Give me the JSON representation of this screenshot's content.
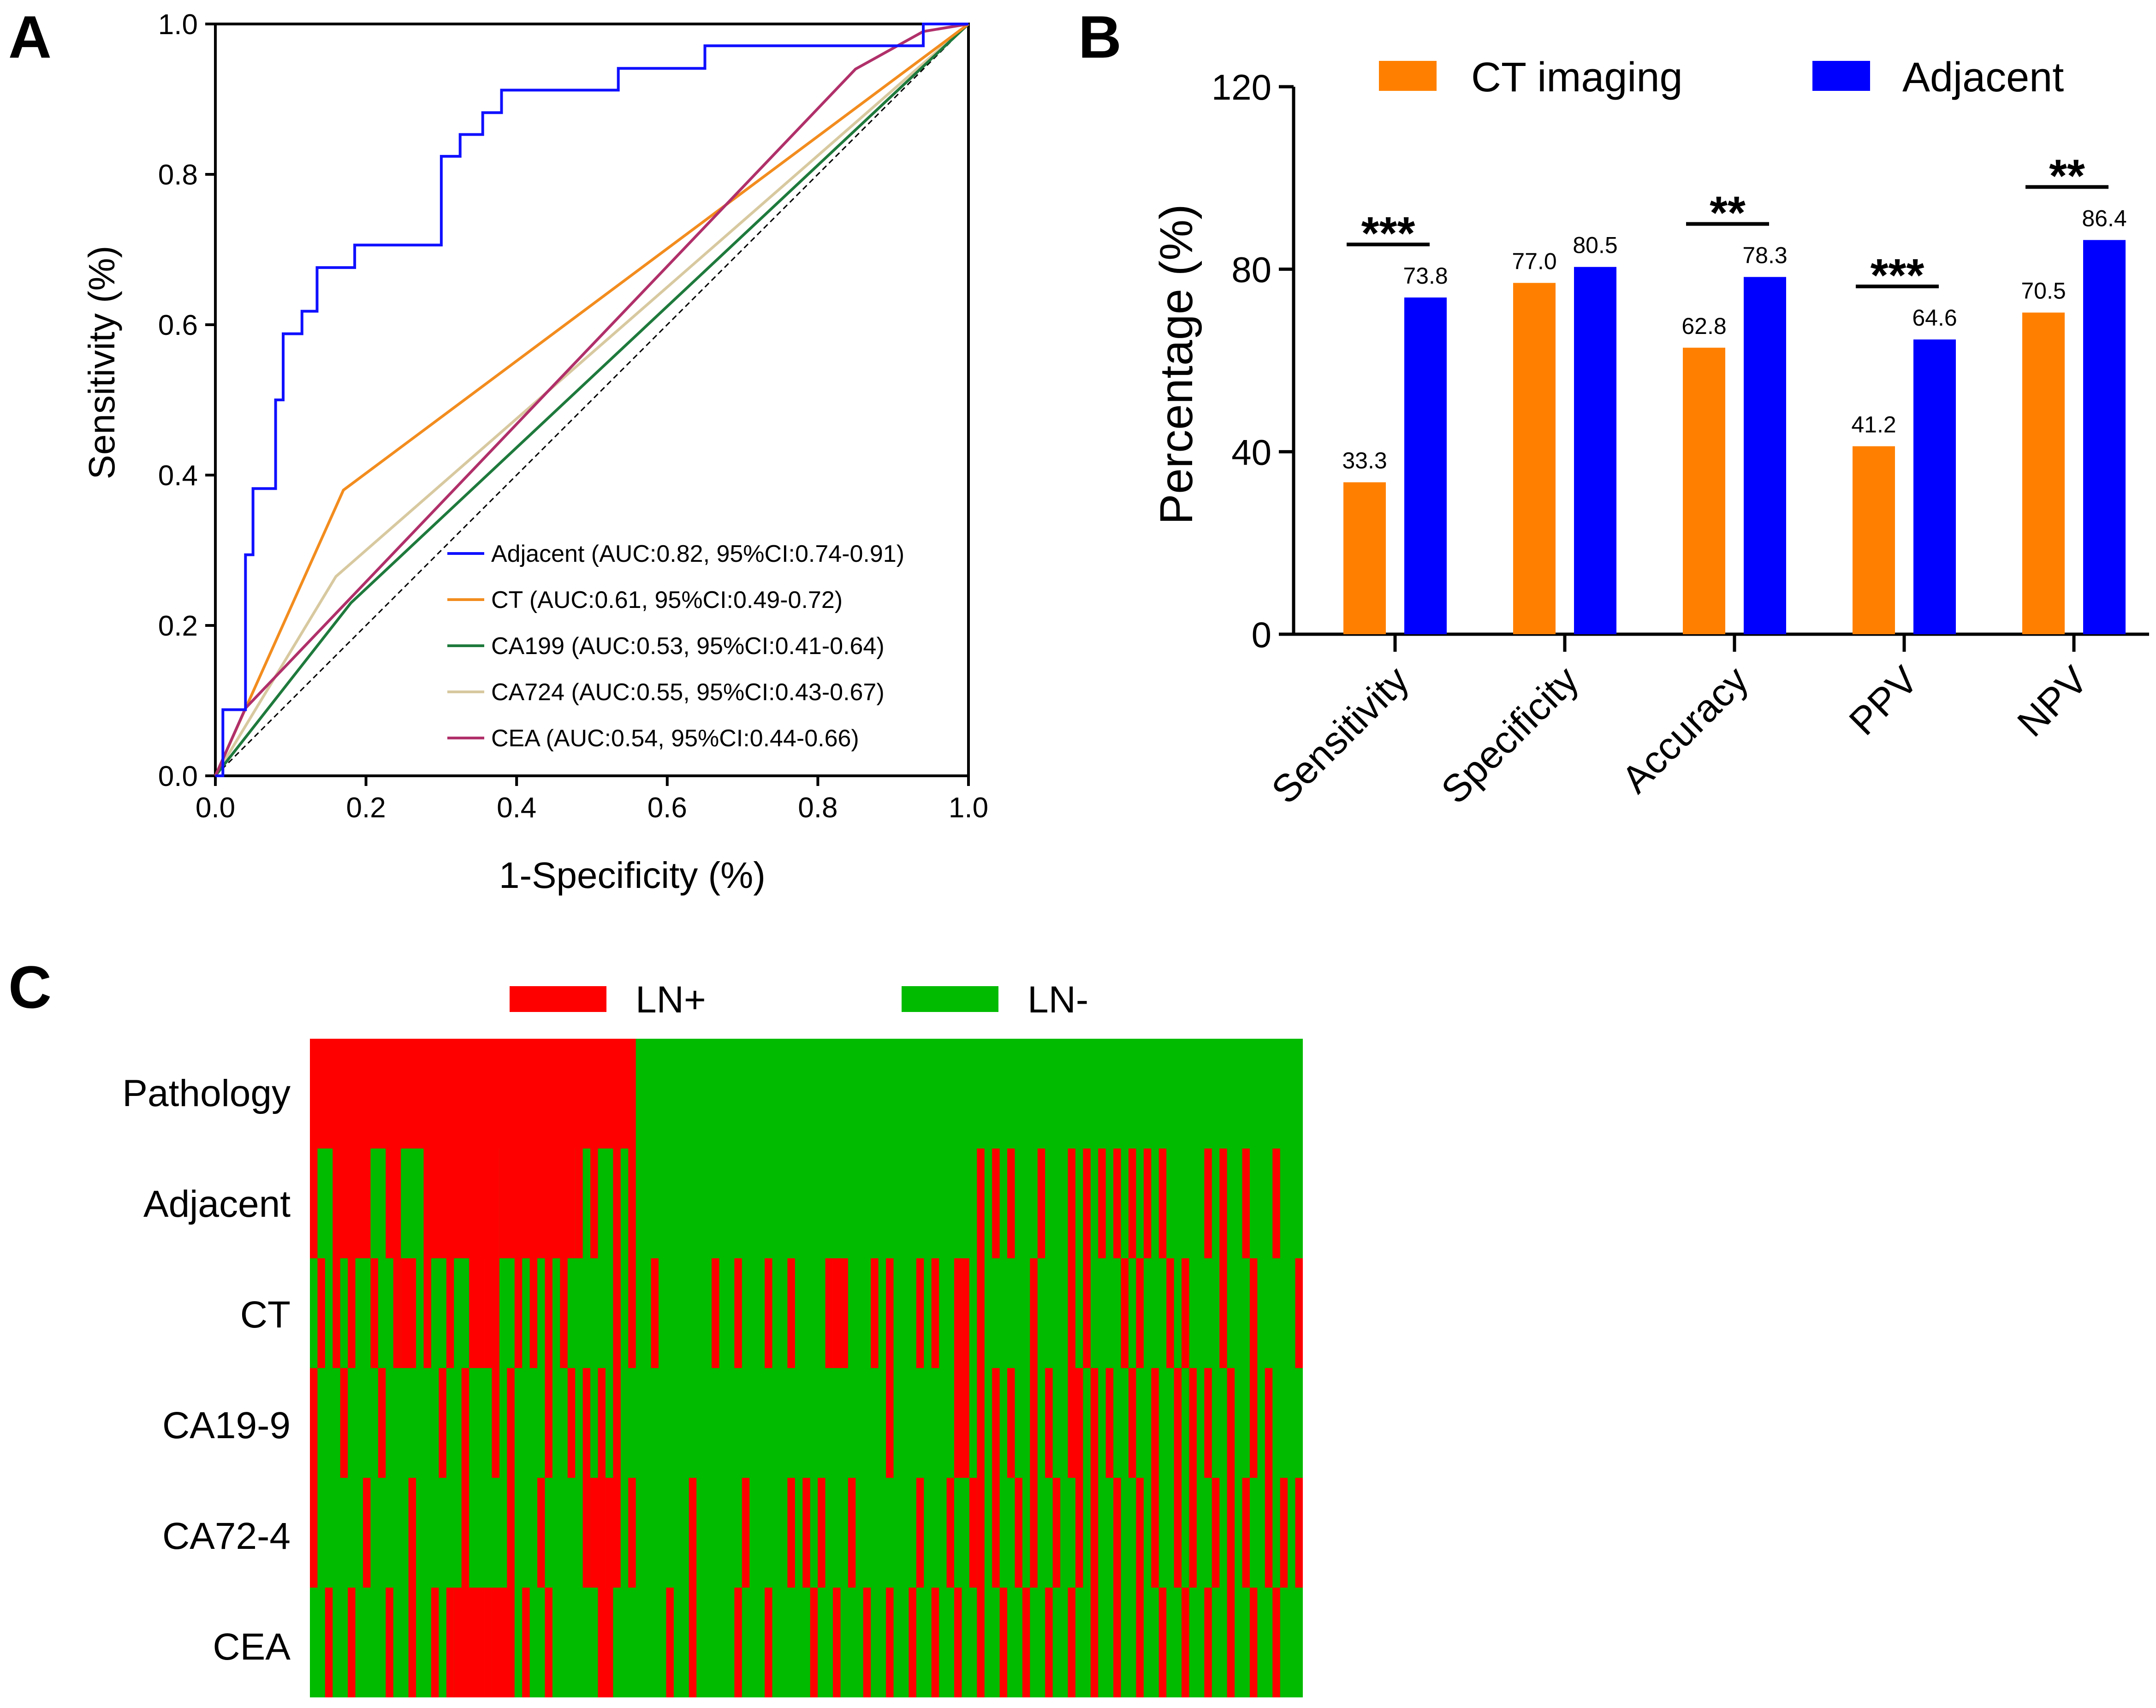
{
  "panels": {
    "a": "A",
    "b": "B",
    "c": "C"
  },
  "roc": {
    "xlabel": "1-Specificity (%)",
    "ylabel": "Sensitivity (%)",
    "xticks": [
      "0.0",
      "0.2",
      "0.4",
      "0.6",
      "0.8",
      "1.0"
    ],
    "yticks": [
      "0.0",
      "0.2",
      "0.4",
      "0.6",
      "0.8",
      "1.0"
    ]
  },
  "bars": {
    "ylabel": "Percentage (%)",
    "yticks": [
      "0",
      "40",
      "80",
      "120"
    ]
  },
  "heatmap": {
    "legend": {
      "pos": "LN+",
      "neg": "LN-"
    },
    "rows": [
      "Pathology",
      "Adjacent",
      "CT",
      "CA19-9",
      "CA72-4",
      "CEA"
    ]
  },
  "colors": {
    "adjacent": "#1010ff",
    "ct": "#f28c1e",
    "ca199": "#1e7a3c",
    "ca724": "#d8c9a0",
    "cea": "#b0306a",
    "bar_ct": "#ff8000",
    "bar_adj": "#0000ff",
    "ln_pos": "#ff0000",
    "ln_neg": "#00bb00"
  },
  "chart_data": [
    {
      "type": "line",
      "title": "",
      "xlabel": "1-Specificity (%)",
      "ylabel": "Sensitivity (%)",
      "xlim": [
        0,
        1
      ],
      "ylim": [
        0,
        1
      ],
      "reference_line": [
        [
          0,
          0
        ],
        [
          1,
          1
        ]
      ],
      "series": [
        {
          "name": "Adjacent",
          "legend": "Adjacent (AUC:0.82, 95%CI:0.74-0.91)",
          "points": [
            [
              0,
              0
            ],
            [
              0.01,
              0
            ],
            [
              0.01,
              0.088
            ],
            [
              0.04,
              0.088
            ],
            [
              0.04,
              0.294
            ],
            [
              0.05,
              0.294
            ],
            [
              0.05,
              0.382
            ],
            [
              0.08,
              0.382
            ],
            [
              0.08,
              0.5
            ],
            [
              0.09,
              0.5
            ],
            [
              0.09,
              0.588
            ],
            [
              0.115,
              0.588
            ],
            [
              0.115,
              0.618
            ],
            [
              0.135,
              0.618
            ],
            [
              0.135,
              0.676
            ],
            [
              0.185,
              0.676
            ],
            [
              0.185,
              0.706
            ],
            [
              0.3,
              0.706
            ],
            [
              0.3,
              0.824
            ],
            [
              0.325,
              0.824
            ],
            [
              0.325,
              0.853
            ],
            [
              0.355,
              0.853
            ],
            [
              0.355,
              0.882
            ],
            [
              0.38,
              0.882
            ],
            [
              0.38,
              0.912
            ],
            [
              0.535,
              0.912
            ],
            [
              0.535,
              0.941
            ],
            [
              0.65,
              0.941
            ],
            [
              0.65,
              0.971
            ],
            [
              0.94,
              0.971
            ],
            [
              0.94,
              1
            ],
            [
              1,
              1
            ]
          ]
        },
        {
          "name": "CT",
          "legend": "CT (AUC:0.61, 95%CI:0.49-0.72)",
          "points": [
            [
              0,
              0
            ],
            [
              0.17,
              0.38
            ],
            [
              1,
              1
            ]
          ]
        },
        {
          "name": "CA199",
          "legend": "CA199 (AUC:0.53, 95%CI:0.41-0.64)",
          "points": [
            [
              0,
              0
            ],
            [
              0.18,
              0.23
            ],
            [
              1,
              1
            ]
          ]
        },
        {
          "name": "CA724",
          "legend": "CA724 (AUC:0.55, 95%CI:0.43-0.67)",
          "points": [
            [
              0,
              0
            ],
            [
              0.16,
              0.265
            ],
            [
              1,
              1
            ]
          ]
        },
        {
          "name": "CEA",
          "legend": "CEA (AUC:0.54, 95%CI:0.44-0.66)",
          "points": [
            [
              0,
              0
            ],
            [
              0.04,
              0.09
            ],
            [
              0.85,
              0.94
            ],
            [
              0.94,
              0.99
            ],
            [
              1,
              1
            ]
          ]
        }
      ]
    },
    {
      "type": "bar",
      "title": "",
      "xlabel": "",
      "ylabel": "Percentage (%)",
      "ylim": [
        0,
        120
      ],
      "categories": [
        "Sensitivity",
        "Specificity",
        "Accuracy",
        "PPV",
        "NPV"
      ],
      "series": [
        {
          "name": "CT imaging",
          "values": [
            33.3,
            77.0,
            62.8,
            41.2,
            70.5
          ],
          "labels": [
            "33.3",
            "77.0",
            "62.8",
            "41.2",
            "70.5"
          ]
        },
        {
          "name": "Adjacent",
          "values": [
            73.8,
            80.5,
            78.3,
            64.6,
            86.4
          ],
          "labels": [
            "73.8",
            "80.5",
            "78.3",
            "64.6",
            "86.4"
          ]
        }
      ],
      "significance": [
        "***",
        "",
        "**",
        "***",
        "**"
      ],
      "legend_position": "top"
    },
    {
      "type": "heatmap",
      "title": "",
      "rows": [
        "Pathology",
        "Adjacent",
        "CT",
        "CA19-9",
        "CA72-4",
        "CEA"
      ],
      "legend": [
        "LN+",
        "LN-"
      ],
      "n_columns": 131,
      "positive_columns": {
        "Pathology": [
          [
            0,
            42
          ]
        ],
        "Adjacent": [
          [
            0,
            0
          ],
          [
            3,
            7
          ],
          [
            10,
            11
          ],
          [
            15,
            24
          ],
          [
            25,
            34
          ],
          [
            35,
            35
          ],
          [
            37,
            37
          ],
          [
            40,
            40
          ],
          [
            42,
            42
          ],
          [
            88,
            88
          ],
          [
            90,
            90
          ],
          [
            92,
            92
          ],
          [
            96,
            96
          ],
          [
            100,
            100
          ],
          [
            102,
            102
          ],
          [
            104,
            104
          ],
          [
            106,
            106
          ],
          [
            108,
            108
          ],
          [
            110,
            110
          ],
          [
            112,
            112
          ],
          [
            118,
            118
          ],
          [
            120,
            120
          ],
          [
            123,
            123
          ],
          [
            127,
            127
          ]
        ],
        "CT": [
          [
            1,
            1
          ],
          [
            3,
            3
          ],
          [
            5,
            5
          ],
          [
            8,
            8
          ],
          [
            11,
            11
          ],
          [
            12,
            13
          ],
          [
            15,
            15
          ],
          [
            18,
            18
          ],
          [
            21,
            22
          ],
          [
            23,
            24
          ],
          [
            27,
            27
          ],
          [
            29,
            29
          ],
          [
            31,
            31
          ],
          [
            33,
            33
          ],
          [
            40,
            40
          ],
          [
            42,
            42
          ],
          [
            45,
            45
          ],
          [
            53,
            53
          ],
          [
            56,
            56
          ],
          [
            60,
            60
          ],
          [
            63,
            63
          ],
          [
            68,
            68
          ],
          [
            69,
            70
          ],
          [
            74,
            74
          ],
          [
            76,
            76
          ],
          [
            80,
            80
          ],
          [
            82,
            82
          ],
          [
            85,
            85
          ],
          [
            86,
            86
          ],
          [
            88,
            88
          ],
          [
            95,
            95
          ],
          [
            100,
            100
          ],
          [
            102,
            102
          ],
          [
            107,
            107
          ],
          [
            109,
            109
          ],
          [
            113,
            113
          ],
          [
            115,
            115
          ],
          [
            120,
            120
          ],
          [
            124,
            124
          ],
          [
            130,
            130
          ]
        ],
        "CA19-9": [
          [
            0,
            0
          ],
          [
            4,
            4
          ],
          [
            9,
            9
          ],
          [
            17,
            17
          ],
          [
            20,
            20
          ],
          [
            24,
            24
          ],
          [
            26,
            26
          ],
          [
            31,
            31
          ],
          [
            34,
            34
          ],
          [
            36,
            36
          ],
          [
            38,
            38
          ],
          [
            40,
            40
          ],
          [
            76,
            76
          ],
          [
            85,
            86
          ],
          [
            88,
            88
          ],
          [
            90,
            90
          ],
          [
            92,
            92
          ],
          [
            95,
            95
          ],
          [
            97,
            97
          ],
          [
            100,
            101
          ],
          [
            103,
            103
          ],
          [
            105,
            105
          ],
          [
            108,
            108
          ],
          [
            111,
            111
          ],
          [
            114,
            114
          ],
          [
            116,
            116
          ],
          [
            118,
            118
          ],
          [
            121,
            121
          ],
          [
            124,
            124
          ],
          [
            126,
            126
          ]
        ],
        "CA72-4": [
          [
            0,
            0
          ],
          [
            7,
            7
          ],
          [
            13,
            13
          ],
          [
            20,
            20
          ],
          [
            26,
            26
          ],
          [
            30,
            30
          ],
          [
            36,
            36
          ],
          [
            37,
            38
          ],
          [
            39,
            40
          ],
          [
            42,
            42
          ],
          [
            50,
            50
          ],
          [
            57,
            57
          ],
          [
            63,
            63
          ],
          [
            65,
            65
          ],
          [
            67,
            67
          ],
          [
            71,
            71
          ],
          [
            80,
            80
          ],
          [
            84,
            84
          ],
          [
            87,
            87
          ],
          [
            88,
            88
          ],
          [
            90,
            90
          ],
          [
            93,
            93
          ],
          [
            95,
            95
          ],
          [
            98,
            98
          ],
          [
            101,
            101
          ],
          [
            103,
            103
          ],
          [
            106,
            106
          ],
          [
            109,
            109
          ],
          [
            111,
            111
          ],
          [
            114,
            114
          ],
          [
            116,
            116
          ],
          [
            119,
            119
          ],
          [
            121,
            121
          ],
          [
            123,
            123
          ],
          [
            126,
            126
          ],
          [
            128,
            128
          ],
          [
            130,
            130
          ]
        ],
        "CEA": [
          [
            2,
            2
          ],
          [
            5,
            5
          ],
          [
            10,
            10
          ],
          [
            13,
            13
          ],
          [
            16,
            16
          ],
          [
            18,
            18
          ],
          [
            19,
            22
          ],
          [
            23,
            23
          ],
          [
            24,
            26
          ],
          [
            28,
            28
          ],
          [
            31,
            31
          ],
          [
            38,
            39
          ],
          [
            47,
            47
          ],
          [
            50,
            50
          ],
          [
            56,
            56
          ],
          [
            60,
            60
          ],
          [
            66,
            66
          ],
          [
            69,
            69
          ],
          [
            73,
            73
          ],
          [
            76,
            76
          ],
          [
            79,
            79
          ],
          [
            82,
            82
          ],
          [
            85,
            85
          ],
          [
            88,
            88
          ],
          [
            91,
            91
          ],
          [
            94,
            94
          ],
          [
            97,
            97
          ],
          [
            100,
            100
          ],
          [
            103,
            103
          ],
          [
            106,
            106
          ],
          [
            109,
            109
          ],
          [
            112,
            112
          ],
          [
            115,
            115
          ],
          [
            118,
            118
          ],
          [
            121,
            121
          ],
          [
            124,
            124
          ],
          [
            127,
            127
          ]
        ]
      }
    }
  ]
}
